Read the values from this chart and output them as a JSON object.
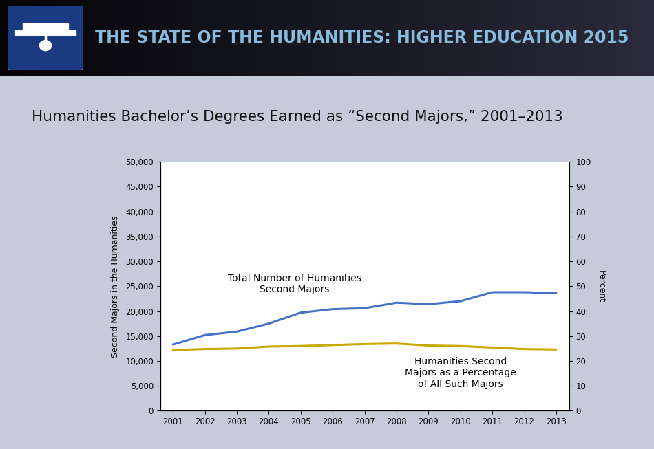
{
  "title_bar_text": "THE STATE OF THE HUMANITIES: HIGHER EDUCATION 2015",
  "chart_title": "Humanities Bachelor’s Degrees Earned as “Second Majors,” 2001–2013",
  "years": [
    2001,
    2002,
    2003,
    2004,
    2005,
    2006,
    2007,
    2008,
    2009,
    2010,
    2011,
    2012,
    2013
  ],
  "blue_line": [
    13300,
    15200,
    15900,
    17500,
    19700,
    20400,
    20600,
    21700,
    21400,
    22000,
    23800,
    23800,
    23600
  ],
  "gold_line_raw": [
    12200,
    12400,
    12500,
    12900,
    13000,
    13200,
    13400,
    13500,
    13100,
    13000,
    12700,
    12400,
    12300
  ],
  "blue_color": "#4472C4",
  "gold_color": "#C9A800",
  "left_ylim": [
    0,
    50000
  ],
  "right_ylim": [
    0,
    100
  ],
  "left_yticks": [
    0,
    5000,
    10000,
    15000,
    20000,
    25000,
    30000,
    35000,
    40000,
    45000,
    50000
  ],
  "right_yticks": [
    0,
    10,
    20,
    30,
    40,
    50,
    60,
    70,
    80,
    90,
    100
  ],
  "left_yticklabels": [
    "0",
    "5,000",
    "10,000",
    "15,000",
    "20,000",
    "25,000",
    "30,000",
    "35,000",
    "40,000",
    "45,000",
    "50,000"
  ],
  "right_yticklabels": [
    "0",
    "10",
    "20",
    "30",
    "40",
    "50",
    "60",
    "70",
    "80",
    "90",
    "100"
  ],
  "ylabel_left": "Second Majors in the Humanities",
  "ylabel_right": "Percent",
  "blue_label": "Total Number of Humanities\nSecond Majors",
  "gold_label": "Humanities Second\nMajors as a Percentage\nof All Such Majors",
  "bg_color": "#C5CBD9",
  "header_bg_dark": "#111118",
  "header_stripe_color": "#3d5a99",
  "plot_bg": "#ffffff"
}
